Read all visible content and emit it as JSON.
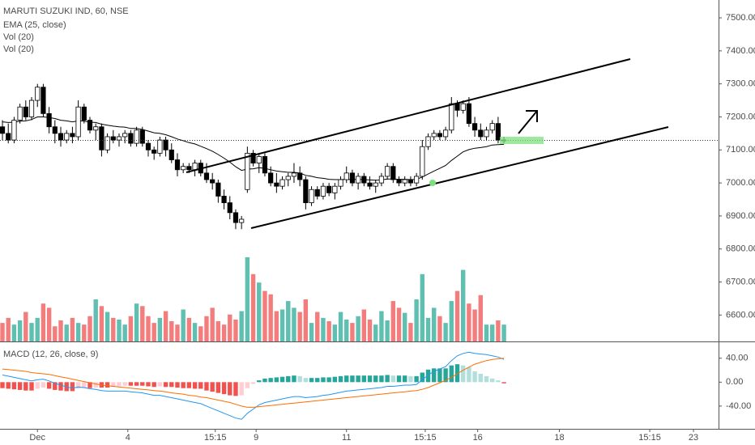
{
  "chart_data": [
    {
      "type": "candlestick",
      "title": "MARUTI SUZUKI IND, 60, NSE",
      "legend": [
        "EMA (25, close)",
        "Vol (20)",
        "Vol (20)"
      ],
      "up_color": "#ffffff",
      "down_color": "#000000",
      "border_color": "#000000",
      "xlim": [
        -0.42,
        122.8
      ],
      "xticks": [
        {
          "value": 6,
          "label": "Dec"
        },
        {
          "value": 21.5,
          "label": "4"
        },
        {
          "value": 36.5,
          "label": "15:15"
        },
        {
          "value": 43.5,
          "label": "9"
        },
        {
          "value": 59,
          "label": "11"
        },
        {
          "value": 72.5,
          "label": "15:15"
        },
        {
          "value": 81.5,
          "label": "16"
        },
        {
          "value": 95.5,
          "label": "18"
        },
        {
          "value": 111,
          "label": "15:15"
        },
        {
          "value": 118.5,
          "label": "23"
        }
      ],
      "ylim": [
        6520,
        7554
      ],
      "yticks": [
        {
          "value": 6600,
          "label": "6600.00"
        },
        {
          "value": 6700,
          "label": "6700.00"
        },
        {
          "value": 6800,
          "label": "6800.00"
        },
        {
          "value": 6900,
          "label": "6900.00"
        },
        {
          "value": 7000,
          "label": "7000.00"
        },
        {
          "value": 7100,
          "label": "7100.00"
        },
        {
          "value": 7200,
          "label": "7200.00"
        },
        {
          "value": 7300,
          "label": "7300.00"
        },
        {
          "value": 7400,
          "label": "7400.00"
        },
        {
          "value": 7500,
          "label": "7500.00"
        }
      ],
      "candles": [
        [
          7170,
          7190,
          7130,
          7150
        ],
        [
          7150,
          7180,
          7120,
          7130
        ],
        [
          7130,
          7200,
          7120,
          7190
        ],
        [
          7190,
          7240,
          7180,
          7230
        ],
        [
          7230,
          7250,
          7190,
          7200
        ],
        [
          7200,
          7260,
          7190,
          7250
        ],
        [
          7250,
          7300,
          7230,
          7290
        ],
        [
          7290,
          7300,
          7200,
          7210
        ],
        [
          7210,
          7230,
          7150,
          7170
        ],
        [
          7170,
          7190,
          7120,
          7150
        ],
        [
          7150,
          7170,
          7110,
          7130
        ],
        [
          7130,
          7160,
          7120,
          7150
        ],
        [
          7150,
          7170,
          7120,
          7140
        ],
        [
          7140,
          7250,
          7130,
          7230
        ],
        [
          7230,
          7240,
          7180,
          7190
        ],
        [
          7190,
          7200,
          7150,
          7160
        ],
        [
          7160,
          7180,
          7130,
          7170
        ],
        [
          7170,
          7180,
          7080,
          7100
        ],
        [
          7100,
          7150,
          7090,
          7140
        ],
        [
          7140,
          7160,
          7120,
          7130
        ],
        [
          7130,
          7150,
          7110,
          7140
        ],
        [
          7140,
          7160,
          7120,
          7150
        ],
        [
          7150,
          7160,
          7110,
          7120
        ],
        [
          7120,
          7170,
          7110,
          7160
        ],
        [
          7160,
          7170,
          7110,
          7120
        ],
        [
          7120,
          7130,
          7080,
          7100
        ],
        [
          7100,
          7110,
          7070,
          7090
        ],
        [
          7090,
          7140,
          7080,
          7130
        ],
        [
          7130,
          7140,
          7080,
          7100
        ],
        [
          7100,
          7120,
          7060,
          7070
        ],
        [
          7070,
          7090,
          7020,
          7040
        ],
        [
          7040,
          7060,
          7030,
          7050
        ],
        [
          7050,
          7060,
          7030,
          7040
        ],
        [
          7040,
          7070,
          7020,
          7060
        ],
        [
          7060,
          7070,
          7020,
          7030
        ],
        [
          7030,
          7060,
          7000,
          7010
        ],
        [
          7010,
          7030,
          6980,
          7000
        ],
        [
          7000,
          7010,
          6940,
          6960
        ],
        [
          6960,
          6980,
          6920,
          6940
        ],
        [
          6940,
          6960,
          6890,
          6910
        ],
        [
          6910,
          6920,
          6860,
          6880
        ],
        [
          6880,
          6900,
          6860,
          6890
        ],
        [
          6980,
          7110,
          6970,
          7090
        ],
        [
          7090,
          7100,
          7050,
          7060
        ],
        [
          7060,
          7090,
          7030,
          7080
        ],
        [
          7080,
          7090,
          7020,
          7030
        ],
        [
          7030,
          7050,
          6990,
          7000
        ],
        [
          7000,
          7030,
          6970,
          6990
        ],
        [
          6990,
          7020,
          6980,
          7010
        ],
        [
          7010,
          7030,
          6990,
          7020
        ],
        [
          7020,
          7060,
          7000,
          7030
        ],
        [
          7030,
          7050,
          6990,
          7010
        ],
        [
          7010,
          7020,
          6920,
          6940
        ],
        [
          6940,
          6990,
          6930,
          6980
        ],
        [
          6980,
          6990,
          6950,
          6960
        ],
        [
          6960,
          7000,
          6950,
          6990
        ],
        [
          6990,
          7000,
          6960,
          6970
        ],
        [
          6970,
          7000,
          6950,
          6990
        ],
        [
          6990,
          7020,
          6980,
          7010
        ],
        [
          7010,
          7050,
          7000,
          7030
        ],
        [
          7030,
          7040,
          6990,
          7000
        ],
        [
          7000,
          7030,
          6980,
          7020
        ],
        [
          7020,
          7030,
          6990,
          7000
        ],
        [
          7000,
          7020,
          6980,
          6990
        ],
        [
          6990,
          7010,
          6970,
          7000
        ],
        [
          7000,
          7030,
          6990,
          7020
        ],
        [
          7020,
          7060,
          7010,
          7050
        ],
        [
          7050,
          7060,
          7000,
          7010
        ],
        [
          7010,
          7020,
          6990,
          7000
        ],
        [
          7000,
          7020,
          6990,
          7010
        ],
        [
          7010,
          7020,
          6990,
          7000
        ],
        [
          7000,
          7030,
          6990,
          7020
        ],
        [
          7020,
          7130,
          7010,
          7110
        ],
        [
          7110,
          7150,
          7100,
          7140
        ],
        [
          7140,
          7160,
          7130,
          7150
        ],
        [
          7150,
          7160,
          7130,
          7140
        ],
        [
          7140,
          7170,
          7130,
          7160
        ],
        [
          7160,
          7260,
          7150,
          7240
        ],
        [
          7240,
          7250,
          7200,
          7220
        ],
        [
          7220,
          7250,
          7210,
          7240
        ],
        [
          7240,
          7260,
          7170,
          7180
        ],
        [
          7180,
          7200,
          7140,
          7160
        ],
        [
          7160,
          7180,
          7130,
          7140
        ],
        [
          7140,
          7170,
          7130,
          7160
        ],
        [
          7160,
          7190,
          7150,
          7180
        ],
        [
          7180,
          7200,
          7120,
          7130
        ],
        [
          7130,
          7140,
          7120,
          7130
        ]
      ],
      "ema": {
        "color": "#000000",
        "values": [
          7185,
          7183,
          7184,
          7187,
          7188,
          7192,
          7200,
          7200,
          7198,
          7195,
          7190,
          7188,
          7185,
          7188,
          7187,
          7184,
          7183,
          7178,
          7175,
          7172,
          7170,
          7169,
          7165,
          7165,
          7162,
          7157,
          7152,
          7150,
          7146,
          7140,
          7133,
          7128,
          7122,
          7118,
          7111,
          7104,
          7096,
          7086,
          7075,
          7063,
          7049,
          7038,
          7042,
          7043,
          7046,
          7044,
          7040,
          7036,
          7034,
          7032,
          7032,
          7030,
          7023,
          7020,
          7016,
          7014,
          7011,
          7010,
          7010,
          7011,
          7010,
          7011,
          7010,
          7009,
          7008,
          7009,
          7012,
          7012,
          7011,
          7011,
          7010,
          7011,
          7018,
          7027,
          7036,
          7044,
          7053,
          7068,
          7081,
          7094,
          7101,
          7105,
          7107,
          7110,
          7115,
          7116,
          7117
        ]
      },
      "volume": {
        "up_color": "#5fbfb0",
        "down_color": "#f37c7c",
        "vlim": [
          0,
          100
        ],
        "values": [
          22,
          28,
          20,
          25,
          35,
          22,
          28,
          45,
          40,
          18,
          25,
          20,
          28,
          22,
          20,
          30,
          50,
          42,
          35,
          28,
          26,
          20,
          30,
          45,
          42,
          30,
          22,
          28,
          36,
          24,
          20,
          38,
          28,
          22,
          18,
          30,
          40,
          24,
          20,
          32,
          26,
          36,
          100,
          80,
          70,
          60,
          56,
          36,
          38,
          48,
          40,
          35,
          50,
          22,
          35,
          28,
          24,
          20,
          35,
          26,
          22,
          30,
          38,
          26,
          20,
          36,
          25,
          48,
          40,
          34,
          22,
          50,
          80,
          28,
          40,
          30,
          22,
          48,
          60,
          85,
          45,
          38,
          55,
          20,
          20,
          25,
          20
        ]
      }
    },
    {
      "type": "macd",
      "title": "MACD (12, 26, close, 9)",
      "ylim": [
        -78,
        64
      ],
      "yticks": [
        {
          "value": -40,
          "label": "-40.00"
        },
        {
          "value": 0,
          "label": "0.00"
        },
        {
          "value": 40,
          "label": "40.00"
        }
      ],
      "macd": {
        "color": "#2196f3",
        "values": [
          12,
          10,
          8,
          6,
          4,
          2,
          4,
          5,
          2,
          -2,
          -5,
          -8,
          -10,
          -8,
          -9,
          -11,
          -12,
          -14,
          -15,
          -15,
          -15,
          -15,
          -16,
          -17,
          -18,
          -20,
          -22,
          -22,
          -24,
          -26,
          -28,
          -30,
          -32,
          -34,
          -36,
          -40,
          -44,
          -48,
          -52,
          -56,
          -60,
          -62,
          -52,
          -45,
          -38,
          -34,
          -32,
          -30,
          -28,
          -26,
          -24,
          -24,
          -26,
          -25,
          -24,
          -22,
          -21,
          -19,
          -17,
          -15,
          -14,
          -13,
          -12,
          -11,
          -10,
          -9,
          -7,
          -7,
          -6,
          -5,
          -5,
          -4,
          4,
          12,
          18,
          22,
          26,
          36,
          44,
          48,
          50,
          48,
          47,
          46,
          44,
          42,
          38
        ]
      },
      "signal": {
        "color": "#ff6d00",
        "values": [
          22,
          21,
          20,
          19,
          18,
          16,
          15,
          14,
          13,
          11,
          9,
          7,
          5,
          3,
          1,
          -1,
          -3,
          -5,
          -6,
          -7,
          -8,
          -9,
          -10,
          -11,
          -12,
          -13,
          -14,
          -15,
          -16,
          -18,
          -19,
          -20,
          -22,
          -23,
          -25,
          -26,
          -28,
          -30,
          -32,
          -34,
          -37,
          -40,
          -42,
          -42,
          -41,
          -40,
          -39,
          -38,
          -37,
          -36,
          -35,
          -34,
          -33,
          -32,
          -31,
          -30,
          -29,
          -28,
          -27,
          -26,
          -25,
          -24,
          -23,
          -22,
          -21,
          -20,
          -19,
          -18,
          -17,
          -16,
          -15,
          -14,
          -12,
          -9,
          -5,
          -1,
          3,
          8,
          14,
          20,
          25,
          30,
          33,
          36,
          38,
          39,
          40
        ]
      },
      "histogram": {
        "colors": [
          "#26a69a",
          "#b2dfdb",
          "#ef5350",
          "#ffcdd2"
        ],
        "values": [
          -10,
          -11,
          -12,
          -13,
          -14,
          -14,
          -11,
          -9,
          -11,
          -13,
          -14,
          -15,
          -15,
          -11,
          -10,
          -10,
          -9,
          -9,
          -9,
          -8,
          -7,
          -6,
          -6,
          -6,
          -6,
          -7,
          -8,
          -7,
          -8,
          -8,
          -9,
          -10,
          -10,
          -11,
          -11,
          -14,
          -16,
          -18,
          -20,
          -22,
          -23,
          -22,
          -10,
          -3,
          3,
          6,
          7,
          8,
          9,
          10,
          11,
          10,
          7,
          7,
          7,
          8,
          8,
          9,
          10,
          11,
          11,
          11,
          11,
          11,
          11,
          11,
          12,
          11,
          11,
          11,
          10,
          10,
          16,
          21,
          23,
          23,
          23,
          28,
          30,
          28,
          25,
          18,
          14,
          10,
          6,
          3,
          -2
        ]
      }
    }
  ]
}
